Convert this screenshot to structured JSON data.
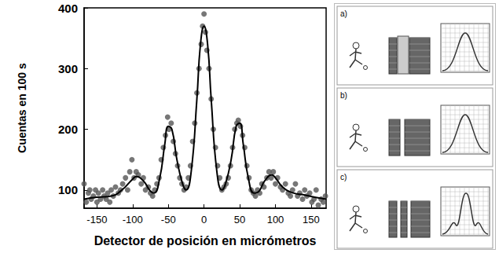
{
  "chart_data": {
    "type": "scatter",
    "x_label": "Detector de posición en micrómetros",
    "y_label": "Cuentas en 100 s",
    "xlim": [
      -168,
      171
    ],
    "ylim": [
      70,
      400
    ],
    "xticks": [
      -150,
      -100,
      -50,
      0,
      50,
      100,
      150
    ],
    "yticks": [
      100,
      200,
      300,
      400
    ],
    "grid": false,
    "series": [
      {
        "type": "scatter",
        "color": "#555555",
        "marker": "circle",
        "x": [
          -168,
          -165,
          -162,
          -160,
          -158,
          -155,
          -152,
          -150,
          -148,
          -145,
          -142,
          -140,
          -137,
          -135,
          -132,
          -130,
          -127,
          -124,
          -120,
          -117,
          -114,
          -110,
          -107,
          -104,
          -101,
          -98,
          -95,
          -92,
          -88,
          -85,
          -82,
          -78,
          -75,
          -72,
          -69,
          -66,
          -63,
          -60,
          -57,
          -54,
          -51,
          -49,
          -46,
          -43,
          -40,
          -37,
          -34,
          -31,
          -28,
          -25,
          -22,
          -19,
          -16,
          -13,
          -10,
          -7,
          -4,
          -2,
          0,
          2,
          4,
          7,
          10,
          13,
          16,
          19,
          22,
          25,
          28,
          31,
          34,
          37,
          40,
          43,
          46,
          48,
          51,
          54,
          57,
          60,
          63,
          66,
          69,
          72,
          75,
          78,
          81,
          84,
          88,
          91,
          94,
          97,
          100,
          103,
          107,
          110,
          114,
          118,
          121,
          124,
          128,
          131,
          134,
          138,
          141,
          144,
          148,
          151,
          154,
          157,
          160,
          164,
          167,
          170
        ],
        "values": [
          110,
          80,
          95,
          100,
          85,
          90,
          100,
          80,
          95,
          85,
          100,
          90,
          85,
          95,
          80,
          100,
          90,
          105,
          95,
          100,
          110,
          120,
          100,
          130,
          150,
          120,
          130,
          125,
          110,
          120,
          100,
          105,
          95,
          90,
          100,
          110,
          120,
          150,
          170,
          190,
          220,
          200,
          210,
          180,
          160,
          140,
          120,
          110,
          100,
          105,
          120,
          140,
          180,
          210,
          260,
          300,
          340,
          370,
          390,
          360,
          330,
          300,
          250,
          200,
          170,
          140,
          120,
          100,
          105,
          110,
          120,
          140,
          170,
          200,
          210,
          215,
          205,
          190,
          170,
          140,
          120,
          100,
          95,
          90,
          100,
          95,
          110,
          105,
          120,
          130,
          120,
          130,
          110,
          120,
          105,
          100,
          110,
          95,
          90,
          100,
          110,
          90,
          95,
          85,
          100,
          90,
          95,
          80,
          85,
          100,
          75,
          85,
          80,
          90
        ]
      },
      {
        "type": "line",
        "color": "#000000",
        "line_style": "solid",
        "x": [
          -168,
          -150,
          -130,
          -115,
          -100,
          -95,
          -85,
          -75,
          -70,
          -62,
          -55,
          -50,
          -45,
          -38,
          -30,
          -25,
          -18,
          -10,
          -5,
          0,
          5,
          10,
          18,
          25,
          30,
          38,
          45,
          50,
          55,
          62,
          70,
          75,
          85,
          95,
          100,
          110,
          125,
          140,
          155,
          171
        ],
        "values": [
          85,
          88,
          90,
          100,
          118,
          122,
          115,
          98,
          95,
          120,
          175,
          205,
          200,
          150,
          110,
          100,
          130,
          250,
          340,
          370,
          340,
          250,
          130,
          100,
          110,
          150,
          205,
          210,
          175,
          120,
          95,
          96,
          115,
          125,
          120,
          105,
          95,
          92,
          88,
          85
        ]
      }
    ]
  },
  "illustration": {
    "panels": [
      "a)",
      "b)",
      "c)"
    ]
  }
}
